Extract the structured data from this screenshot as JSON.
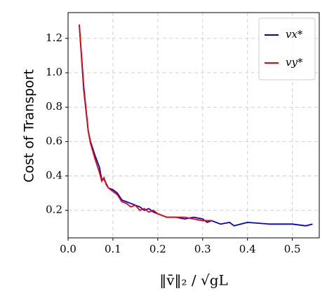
{
  "chart_data": {
    "type": "line",
    "xlabel": "‖v̄‖₂ / √gL",
    "ylabel": "Cost of Transport",
    "xlim": [
      0,
      0.56
    ],
    "ylim": [
      0.04,
      1.35
    ],
    "xticks": [
      {
        "value": 0,
        "label": "0.0"
      },
      0.1,
      0.2,
      0.3,
      0.4,
      0.5
    ],
    "yticks": [
      0.2,
      0.4,
      0.6,
      0.8,
      {
        "value": 1,
        "label": "1.0"
      },
      1.2
    ],
    "grid": true,
    "legend": "upper right",
    "series": [
      {
        "name": "vx*",
        "color": "#0000dd",
        "x": [
          0.025,
          0.035,
          0.045,
          0.05,
          0.06,
          0.07,
          0.075,
          0.08,
          0.09,
          0.1,
          0.11,
          0.12,
          0.13,
          0.14,
          0.15,
          0.16,
          0.17,
          0.18,
          0.19,
          0.2,
          0.21,
          0.22,
          0.24,
          0.26,
          0.28,
          0.3,
          0.31,
          0.32,
          0.34,
          0.36,
          0.37,
          0.4,
          0.45,
          0.5,
          0.53,
          0.545
        ],
        "values": [
          1.28,
          0.9,
          0.66,
          0.6,
          0.52,
          0.45,
          0.38,
          0.38,
          0.33,
          0.32,
          0.3,
          0.26,
          0.25,
          0.24,
          0.23,
          0.22,
          0.2,
          0.21,
          0.19,
          0.18,
          0.17,
          0.16,
          0.16,
          0.15,
          0.16,
          0.15,
          0.13,
          0.14,
          0.12,
          0.13,
          0.11,
          0.13,
          0.12,
          0.12,
          0.11,
          0.12
        ]
      },
      {
        "name": "vy*",
        "color": "#ee0000",
        "x": [
          0.025,
          0.035,
          0.045,
          0.05,
          0.06,
          0.07,
          0.075,
          0.08,
          0.085,
          0.09,
          0.1,
          0.11,
          0.12,
          0.13,
          0.14,
          0.15,
          0.16,
          0.17,
          0.18,
          0.19,
          0.2,
          0.21,
          0.22,
          0.24,
          0.26,
          0.28,
          0.3,
          0.32
        ],
        "values": [
          1.28,
          0.92,
          0.66,
          0.59,
          0.5,
          0.42,
          0.37,
          0.39,
          0.35,
          0.33,
          0.31,
          0.29,
          0.25,
          0.24,
          0.22,
          0.23,
          0.2,
          0.21,
          0.19,
          0.2,
          0.18,
          0.17,
          0.16,
          0.16,
          0.16,
          0.15,
          0.14,
          0.14
        ]
      }
    ]
  }
}
